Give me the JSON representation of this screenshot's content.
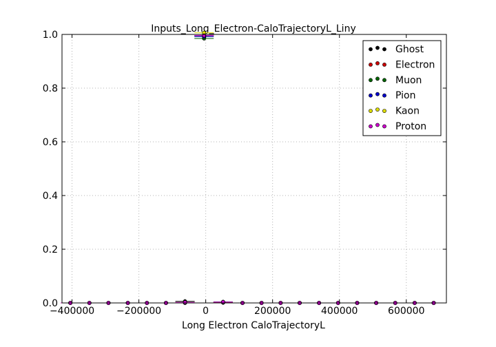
{
  "chart_data": {
    "type": "scatter",
    "title": "Inputs_Long_Electron-CaloTrajectoryL_Liny",
    "xlabel": "Long Electron CaloTrajectoryL",
    "ylabel": "",
    "xlim": [
      -430000,
      720000
    ],
    "ylim": [
      0.0,
      1.0
    ],
    "x_ticks": [
      -400000,
      -200000,
      0,
      200000,
      400000,
      600000
    ],
    "x_tick_labels": [
      "−400000",
      "−200000",
      "0",
      "200000",
      "400000",
      "600000"
    ],
    "y_ticks": [
      0.0,
      0.2,
      0.4,
      0.6,
      0.8,
      1.0
    ],
    "y_tick_labels": [
      "0.0",
      "0.2",
      "0.4",
      "0.6",
      "0.8",
      "1.0"
    ],
    "grid": true,
    "legend_position": "top-right",
    "legend_marker": "circle",
    "series": [
      {
        "name": "Ghost",
        "color": "#000000",
        "x": [
          -405000,
          -348000,
          -291000,
          -233000,
          -176000,
          -119000,
          -62000,
          -5000,
          52000,
          110000,
          167000,
          224000,
          281000,
          339000,
          396000,
          453000,
          510000,
          567000,
          625000,
          682000
        ],
        "y": [
          0,
          0,
          0,
          0,
          0,
          0,
          0.006,
          0.993,
          0.004,
          0,
          0,
          0,
          0,
          0,
          0,
          0,
          0,
          0,
          0,
          0
        ]
      },
      {
        "name": "Electron",
        "color": "#cc0000",
        "x": [
          -405000,
          -348000,
          -291000,
          -233000,
          -176000,
          -119000,
          -62000,
          -5000,
          52000,
          110000,
          167000,
          224000,
          281000,
          339000,
          396000,
          453000,
          510000,
          567000,
          625000,
          682000
        ],
        "y": [
          0,
          0,
          0,
          0,
          0,
          0,
          0.001,
          0.996,
          0.002,
          0,
          0,
          0,
          0,
          0,
          0,
          0,
          0,
          0,
          0,
          0
        ]
      },
      {
        "name": "Muon",
        "color": "#006600",
        "x": [
          -405000,
          -348000,
          -291000,
          -233000,
          -176000,
          -119000,
          -62000,
          -5000,
          52000,
          110000,
          167000,
          224000,
          281000,
          339000,
          396000,
          453000,
          510000,
          567000,
          625000,
          682000
        ],
        "y": [
          0,
          0,
          0,
          0,
          0,
          0,
          0.0,
          0.985,
          0.001,
          0,
          0,
          0,
          0,
          0,
          0,
          0,
          0,
          0,
          0,
          0
        ]
      },
      {
        "name": "Pion",
        "color": "#0000cc",
        "x": [
          -405000,
          -348000,
          -291000,
          -233000,
          -176000,
          -119000,
          -62000,
          -5000,
          52000,
          110000,
          167000,
          224000,
          281000,
          339000,
          396000,
          453000,
          510000,
          567000,
          625000,
          682000
        ],
        "y": [
          0,
          0,
          0,
          0,
          0,
          0,
          0.002,
          0.992,
          0.003,
          0,
          0,
          0,
          0,
          0,
          0,
          0,
          0,
          0,
          0,
          0
        ]
      },
      {
        "name": "Kaon",
        "color": "#dddd00",
        "x": [
          -405000,
          -348000,
          -291000,
          -233000,
          -176000,
          -119000,
          -62000,
          -5000,
          52000,
          110000,
          167000,
          224000,
          281000,
          339000,
          396000,
          453000,
          510000,
          567000,
          625000,
          682000
        ],
        "y": [
          0,
          0,
          0,
          0,
          0,
          0,
          0.002,
          1.006,
          0.002,
          0,
          0,
          0,
          0,
          0,
          0,
          0,
          0,
          0,
          0,
          0
        ]
      },
      {
        "name": "Proton",
        "color": "#cc00cc",
        "x": [
          -405000,
          -348000,
          -291000,
          -233000,
          -176000,
          -119000,
          -62000,
          -5000,
          52000,
          110000,
          167000,
          224000,
          281000,
          339000,
          396000,
          453000,
          510000,
          567000,
          625000,
          682000
        ],
        "y": [
          0,
          0,
          0,
          0,
          0,
          0,
          0.002,
          0.996,
          0.003,
          0,
          0,
          0,
          0,
          0,
          0,
          0,
          0,
          0,
          0,
          0
        ]
      }
    ]
  }
}
